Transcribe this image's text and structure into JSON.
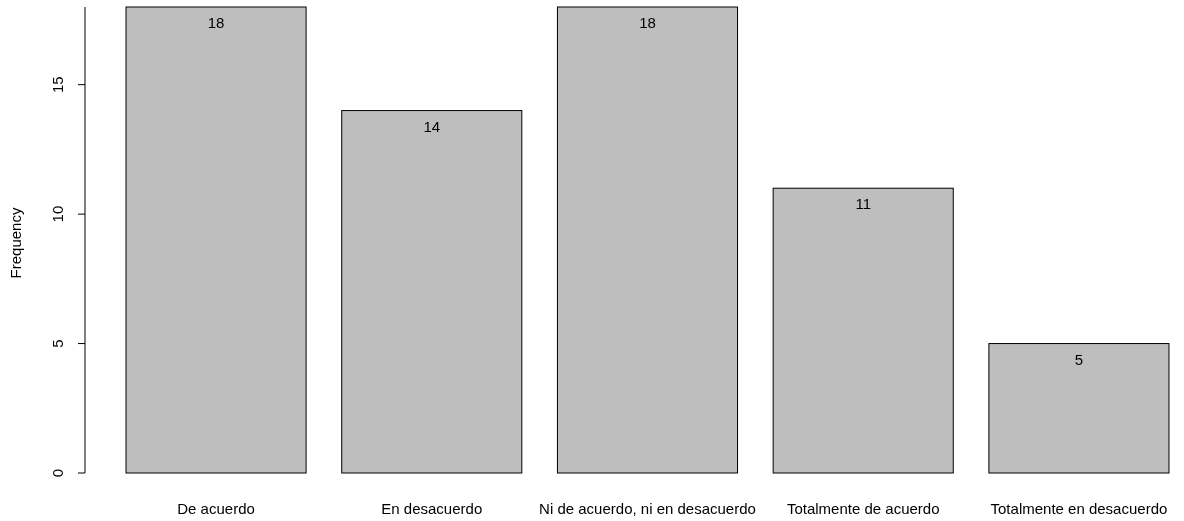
{
  "chart_data": {
    "type": "bar",
    "ylabel": "Frequency",
    "categories": [
      "De acuerdo",
      "En desacuerdo",
      "Ni de acuerdo, ni en desacuerdo",
      "Totalmente de acuerdo",
      "Totalmente en desacuerdo"
    ],
    "values": [
      18,
      14,
      18,
      11,
      5
    ],
    "color": "#bebebe",
    "ylim": [
      0,
      18
    ],
    "yticks": [
      0,
      5,
      10,
      15
    ],
    "grid": false,
    "data_labels": true
  }
}
